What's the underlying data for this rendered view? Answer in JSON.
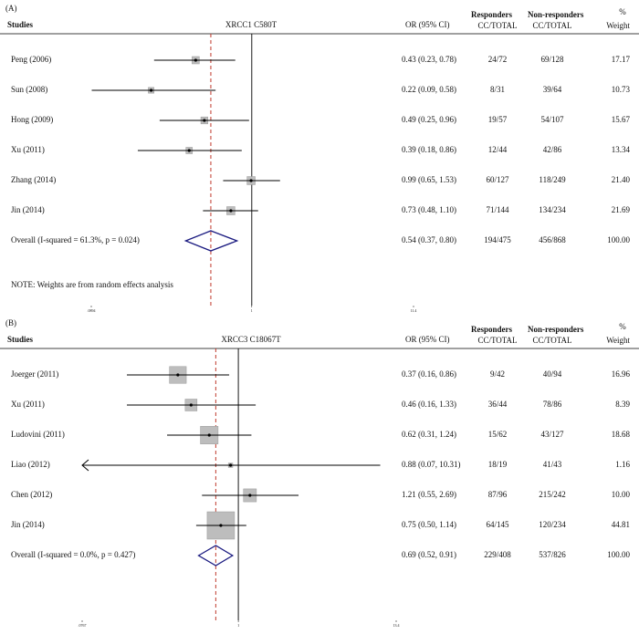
{
  "chart_data": [
    {
      "type": "forest",
      "panel_label": "(A)",
      "title": "XRCC1 C580T",
      "columns": {
        "study": "Studies",
        "estimate": "OR (95% CI)",
        "responders": "Responders",
        "nonresponders": "Non-responders",
        "weight_pct": "%",
        "responders_sub": "CC/TOTAL",
        "nonresponders_sub": "CC/TOTAL",
        "weight": "Weight"
      },
      "studies": [
        {
          "name": "Peng (2006)",
          "or": 0.43,
          "ci": [
            0.23,
            0.78
          ],
          "estimate_label": "0.43 (0.23, 0.78)",
          "responders": "24/72",
          "nonresponders": "69/128",
          "weight": 17.17,
          "weight_label": "17.17"
        },
        {
          "name": "Sun (2008)",
          "or": 0.22,
          "ci": [
            0.09,
            0.58
          ],
          "estimate_label": "0.22 (0.09, 0.58)",
          "responders": "8/31",
          "nonresponders": "39/64",
          "weight": 10.73,
          "weight_label": "10.73"
        },
        {
          "name": "Hong (2009)",
          "or": 0.49,
          "ci": [
            0.25,
            0.96
          ],
          "estimate_label": "0.49 (0.25, 0.96)",
          "responders": "19/57",
          "nonresponders": "54/107",
          "weight": 15.67,
          "weight_label": "15.67"
        },
        {
          "name": "Xu (2011)",
          "or": 0.39,
          "ci": [
            0.18,
            0.86
          ],
          "estimate_label": "0.39 (0.18, 0.86)",
          "responders": "12/44",
          "nonresponders": "42/86",
          "weight": 13.34,
          "weight_label": "13.34"
        },
        {
          "name": "Zhang (2014)",
          "or": 0.99,
          "ci": [
            0.65,
            1.53
          ],
          "estimate_label": "0.99 (0.65, 1.53)",
          "responders": "60/127",
          "nonresponders": "118/249",
          "weight": 21.4,
          "weight_label": "21.40"
        },
        {
          "name": "Jin (2014)",
          "or": 0.73,
          "ci": [
            0.48,
            1.1
          ],
          "estimate_label": "0.73 (0.48, 1.10)",
          "responders": "71/144",
          "nonresponders": "134/234",
          "weight": 21.69,
          "weight_label": "21.69"
        }
      ],
      "overall": {
        "name": "Overall  (I-squared = 61.3%, p = 0.024)",
        "or": 0.54,
        "ci": [
          0.37,
          0.8
        ],
        "estimate_label": "0.54 (0.37, 0.80)",
        "responders": "194/475",
        "nonresponders": "456/868",
        "weight": 100,
        "weight_label": "100.00"
      },
      "note": "NOTE: Weights are from random effects analysis",
      "log_scale": true,
      "xlim": [
        0.0894,
        11.4
      ],
      "xticks": [
        {
          "value": 0.0894,
          "label": ".0894"
        },
        1,
        {
          "value": 11.4,
          "label": "11.4"
        }
      ],
      "box_color": "#bdbdbd",
      "diamond_color": "#1a1a80",
      "overall_line_color": "#c0392b"
    },
    {
      "type": "forest",
      "panel_label": "(B)",
      "title": "XRCC3 C18067T",
      "columns": {
        "study": "Studies",
        "estimate": "OR (95% CI)",
        "responders": "Responders",
        "nonresponders": "Non-responders",
        "weight_pct": "%",
        "responders_sub": "CC/TOTAL",
        "nonresponders_sub": "CC/TOTAL",
        "weight": "Weight"
      },
      "studies": [
        {
          "name": "Joerger (2011)",
          "or": 0.37,
          "ci": [
            0.16,
            0.86
          ],
          "estimate_label": "0.37 (0.16, 0.86)",
          "responders": "9/42",
          "nonresponders": "40/94",
          "weight": 16.96,
          "weight_label": "16.96"
        },
        {
          "name": "Xu (2011)",
          "or": 0.46,
          "ci": [
            0.16,
            1.33
          ],
          "estimate_label": "0.46 (0.16, 1.33)",
          "responders": "36/44",
          "nonresponders": "78/86",
          "weight": 8.39,
          "weight_label": "8.39"
        },
        {
          "name": "Ludovini (2011)",
          "or": 0.62,
          "ci": [
            0.31,
            1.24
          ],
          "estimate_label": "0.62 (0.31, 1.24)",
          "responders": "15/62",
          "nonresponders": "43/127",
          "weight": 18.68,
          "weight_label": "18.68"
        },
        {
          "name": "Liao (2012)",
          "or": 0.88,
          "ci": [
            0.07,
            10.31
          ],
          "estimate_label": "0.88 (0.07, 10.31)",
          "responders": "18/19",
          "nonresponders": "41/43",
          "weight": 1.16,
          "weight_label": "1.16"
        },
        {
          "name": "Chen (2012)",
          "or": 1.21,
          "ci": [
            0.55,
            2.69
          ],
          "estimate_label": "1.21 (0.55, 2.69)",
          "responders": "87/96",
          "nonresponders": "215/242",
          "weight": 10,
          "weight_label": "10.00"
        },
        {
          "name": "Jin (2014)",
          "or": 0.75,
          "ci": [
            0.5,
            1.14
          ],
          "estimate_label": "0.75 (0.50, 1.14)",
          "responders": "64/145",
          "nonresponders": "120/234",
          "weight": 44.81,
          "weight_label": "44.81"
        }
      ],
      "overall": {
        "name": "Overall  (I-squared = 0.0%, p = 0.427)",
        "or": 0.69,
        "ci": [
          0.52,
          0.91
        ],
        "estimate_label": "0.69 (0.52, 0.91)",
        "responders": "229/408",
        "nonresponders": "537/826",
        "weight": 100,
        "weight_label": "100.00"
      },
      "log_scale": true,
      "xlim": [
        0.0767,
        13.4
      ],
      "xticks": [
        {
          "value": 0.0767,
          "label": ".0767"
        },
        1,
        {
          "value": 13.4,
          "label": "13.4"
        }
      ],
      "box_color": "#bdbdbd",
      "diamond_color": "#1a1a80",
      "overall_line_color": "#c0392b"
    }
  ]
}
